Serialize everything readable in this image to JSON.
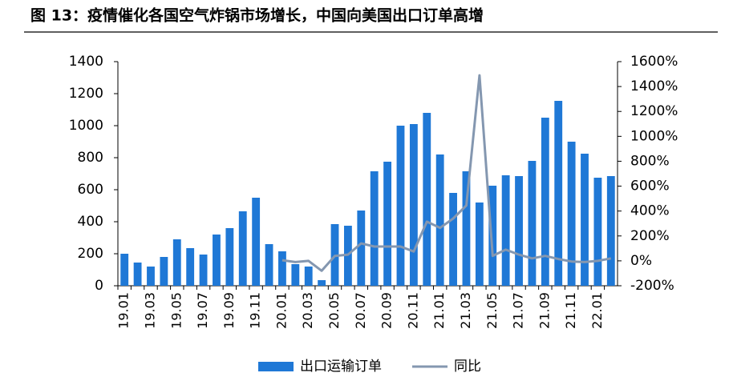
{
  "chart_data": {
    "type": "bar_line",
    "title": "图 13：疫情催化各国空气炸锅市场增长，中国向美国出口订单高增",
    "categories": [
      "19.01",
      null,
      "19.03",
      null,
      "19.05",
      null,
      "19.07",
      null,
      "19.09",
      null,
      "19.11",
      null,
      "20.01",
      null,
      "20.03",
      null,
      "20.05",
      null,
      "20.07",
      null,
      "20.09",
      null,
      "20.11",
      null,
      "21.01",
      null,
      "21.03",
      null,
      "21.05",
      null,
      "21.07",
      null,
      "21.09",
      null,
      "21.11",
      null,
      "22.01",
      null
    ],
    "series": [
      {
        "name": "出口运输订单",
        "color": "#1f78d6",
        "values": [
          200,
          145,
          120,
          180,
          290,
          235,
          195,
          320,
          360,
          465,
          550,
          260,
          215,
          135,
          120,
          35,
          385,
          375,
          470,
          715,
          775,
          1000,
          1010,
          1080,
          820,
          580,
          715,
          520,
          625,
          690,
          685,
          780,
          1050,
          1155,
          900,
          825,
          675,
          685
        ]
      },
      {
        "name": "同比",
        "color": "#8497b0",
        "axis": "y2",
        "values": [
          null,
          null,
          null,
          null,
          null,
          null,
          null,
          null,
          null,
          null,
          null,
          null,
          5,
          -10,
          0,
          -80,
          40,
          50,
          140,
          115,
          115,
          115,
          75,
          315,
          265,
          340,
          445,
          1490,
          40,
          90,
          50,
          20,
          40,
          15,
          -5,
          -10,
          0,
          20
        ]
      }
    ],
    "ylim": [
      0,
      1400
    ],
    "yticks": [
      0,
      200,
      400,
      600,
      800,
      1000,
      1200,
      1400
    ],
    "y2lim": [
      -200,
      1600
    ],
    "y2ticks": [
      {
        "value": -200,
        "label": "-200%"
      },
      {
        "value": 0,
        "label": "0%"
      },
      {
        "value": 200,
        "label": "200%"
      },
      {
        "value": 400,
        "label": "400%"
      },
      {
        "value": 600,
        "label": "600%"
      },
      {
        "value": 800,
        "label": "800%"
      },
      {
        "value": 1000,
        "label": "1000%"
      },
      {
        "value": 1200,
        "label": "1200%"
      },
      {
        "value": 1400,
        "label": "1400%"
      },
      {
        "value": 1600,
        "label": "1600%"
      }
    ],
    "legend": "bottom"
  }
}
